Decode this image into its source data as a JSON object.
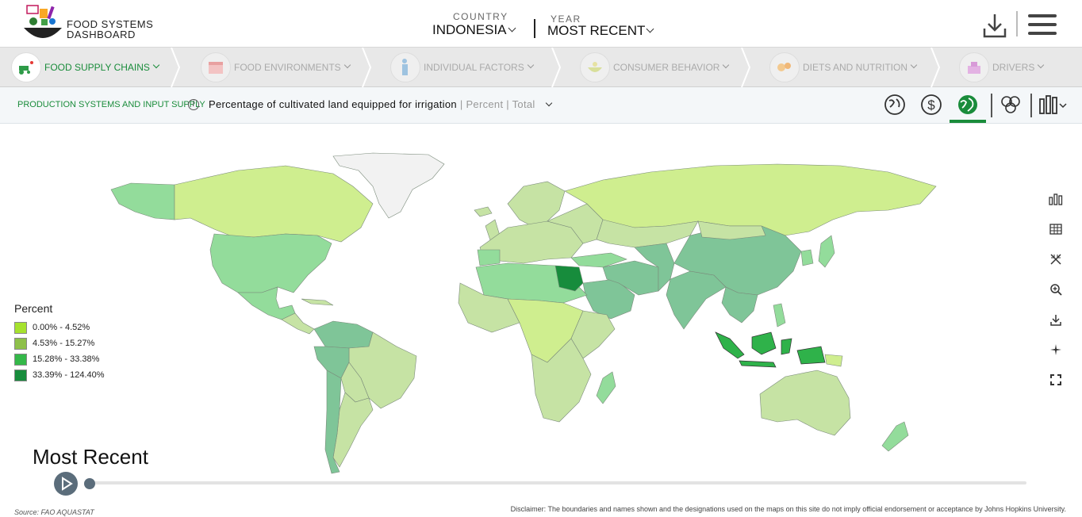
{
  "header": {
    "logo_line1": "FOOD SYSTEMS",
    "logo_line2": "DASHBOARD",
    "country_label": "COUNTRY",
    "country_value": "INDONESIA",
    "year_label": "YEAR",
    "year_value": "MOST RECENT"
  },
  "categories": [
    {
      "label": "FOOD SUPPLY CHAINS",
      "active": true
    },
    {
      "label": "FOOD ENVIRONMENTS",
      "active": false
    },
    {
      "label": "INDIVIDUAL FACTORS",
      "active": false
    },
    {
      "label": "CONSUMER BEHAVIOR",
      "active": false
    },
    {
      "label": "DIETS AND NUTRITION",
      "active": false
    },
    {
      "label": "DRIVERS",
      "active": false
    }
  ],
  "indicator": {
    "subcategory": "PRODUCTION SYSTEMS AND INPUT SUPPLY",
    "title": "Percentage of cultivated land equipped for irrigation",
    "meta": "| Percent | Total"
  },
  "view_icons": [
    "globe-settings-icon",
    "dollar-icon",
    "globe-icon",
    "circles-icon",
    "bar-chart-icon"
  ],
  "legend": {
    "title": "Percent",
    "items": [
      {
        "label": "0.00% - 4.52%",
        "color": "#a6e22e"
      },
      {
        "label": "4.53% - 15.27%",
        "color": "#8ec04a"
      },
      {
        "label": "15.28% - 33.38%",
        "color": "#34b849"
      },
      {
        "label": "33.39% - 124.40%",
        "color": "#178c3c"
      }
    ]
  },
  "map_colors": {
    "light": "#cfee8f",
    "pale": "#c6e3a4",
    "mid": "#93dc9b",
    "teal": "#7fc598",
    "indonesia": "#2fb24a",
    "greenland": "#f2f2f2"
  },
  "tools": [
    "bar-chart-icon",
    "table-icon",
    "collapse-icon",
    "zoom-in-icon",
    "download-icon",
    "crosshair-icon",
    "fullscreen-icon"
  ],
  "timeline": {
    "label": "Most Recent"
  },
  "footer": {
    "source": "Source: FAO AQUASTAT",
    "disclaimer": "Disclaimer: The boundaries and names shown and the designations used on the maps on this site do not imply official endorsement or acceptance by Johns Hopkins University."
  }
}
